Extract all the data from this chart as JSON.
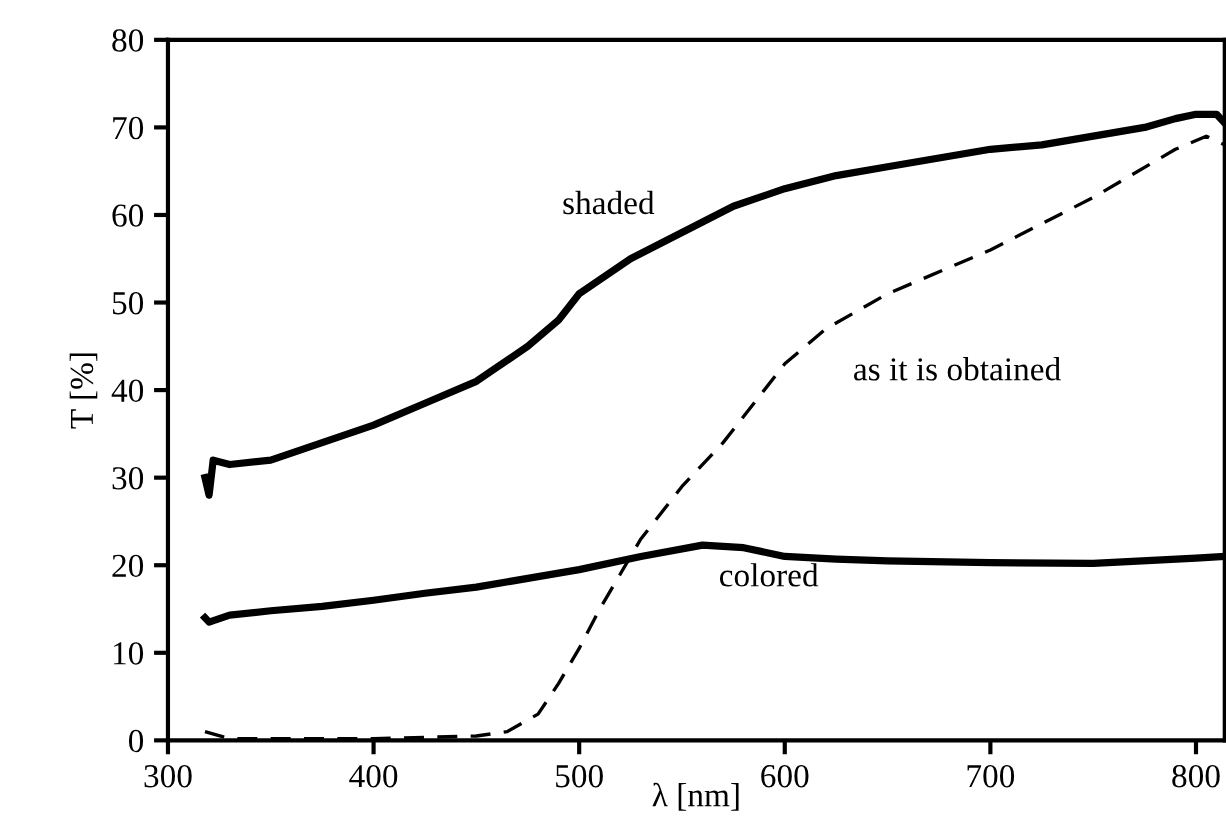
{
  "chart_data": {
    "type": "line",
    "xlabel": "λ [nm]",
    "ylabel": "T [%]",
    "xlim": [
      300,
      814
    ],
    "ylim": [
      0,
      80
    ],
    "xticks": [
      300,
      400,
      500,
      600,
      700,
      800
    ],
    "yticks": [
      0,
      10,
      20,
      30,
      40,
      50,
      60,
      70,
      80
    ],
    "grid": false,
    "marker": "none",
    "series": [
      {
        "name": "shaded",
        "color": "#000000",
        "line_style": "solid",
        "x": [
          318,
          320,
          322,
          330,
          350,
          375,
          400,
          425,
          450,
          475,
          490,
          500,
          525,
          550,
          575,
          600,
          625,
          650,
          675,
          700,
          725,
          750,
          775,
          790,
          800,
          810,
          814
        ],
        "values": [
          30,
          28,
          32,
          31.5,
          32,
          34,
          36,
          38.5,
          41,
          45,
          48,
          51,
          55,
          58,
          61,
          63,
          64.5,
          65.5,
          66.5,
          67.5,
          68,
          69,
          70,
          71,
          71.5,
          71.5,
          70.5
        ]
      },
      {
        "name": "colored",
        "color": "#000000",
        "line_style": "solid",
        "x": [
          318,
          320,
          330,
          350,
          375,
          400,
          425,
          450,
          475,
          500,
          530,
          560,
          580,
          600,
          625,
          650,
          700,
          750,
          800,
          814
        ],
        "values": [
          14,
          13.5,
          14.3,
          14.8,
          15.3,
          16,
          16.8,
          17.5,
          18.5,
          19.5,
          21,
          22.3,
          22,
          21,
          20.7,
          20.5,
          20.3,
          20.2,
          20.8,
          21
        ]
      },
      {
        "name": "as it is obtained",
        "color": "#000000",
        "line_style": "dashed",
        "x": [
          318,
          330,
          350,
          400,
          450,
          465,
          480,
          490,
          500,
          510,
          520,
          530,
          550,
          570,
          590,
          600,
          620,
          650,
          700,
          750,
          790,
          805,
          814
        ],
        "values": [
          1,
          0.2,
          0.2,
          0.2,
          0.5,
          1,
          3,
          6.5,
          10.5,
          15,
          19,
          23,
          29,
          34,
          40,
          43,
          47,
          51,
          56,
          62,
          67.5,
          69,
          68
        ]
      }
    ]
  }
}
